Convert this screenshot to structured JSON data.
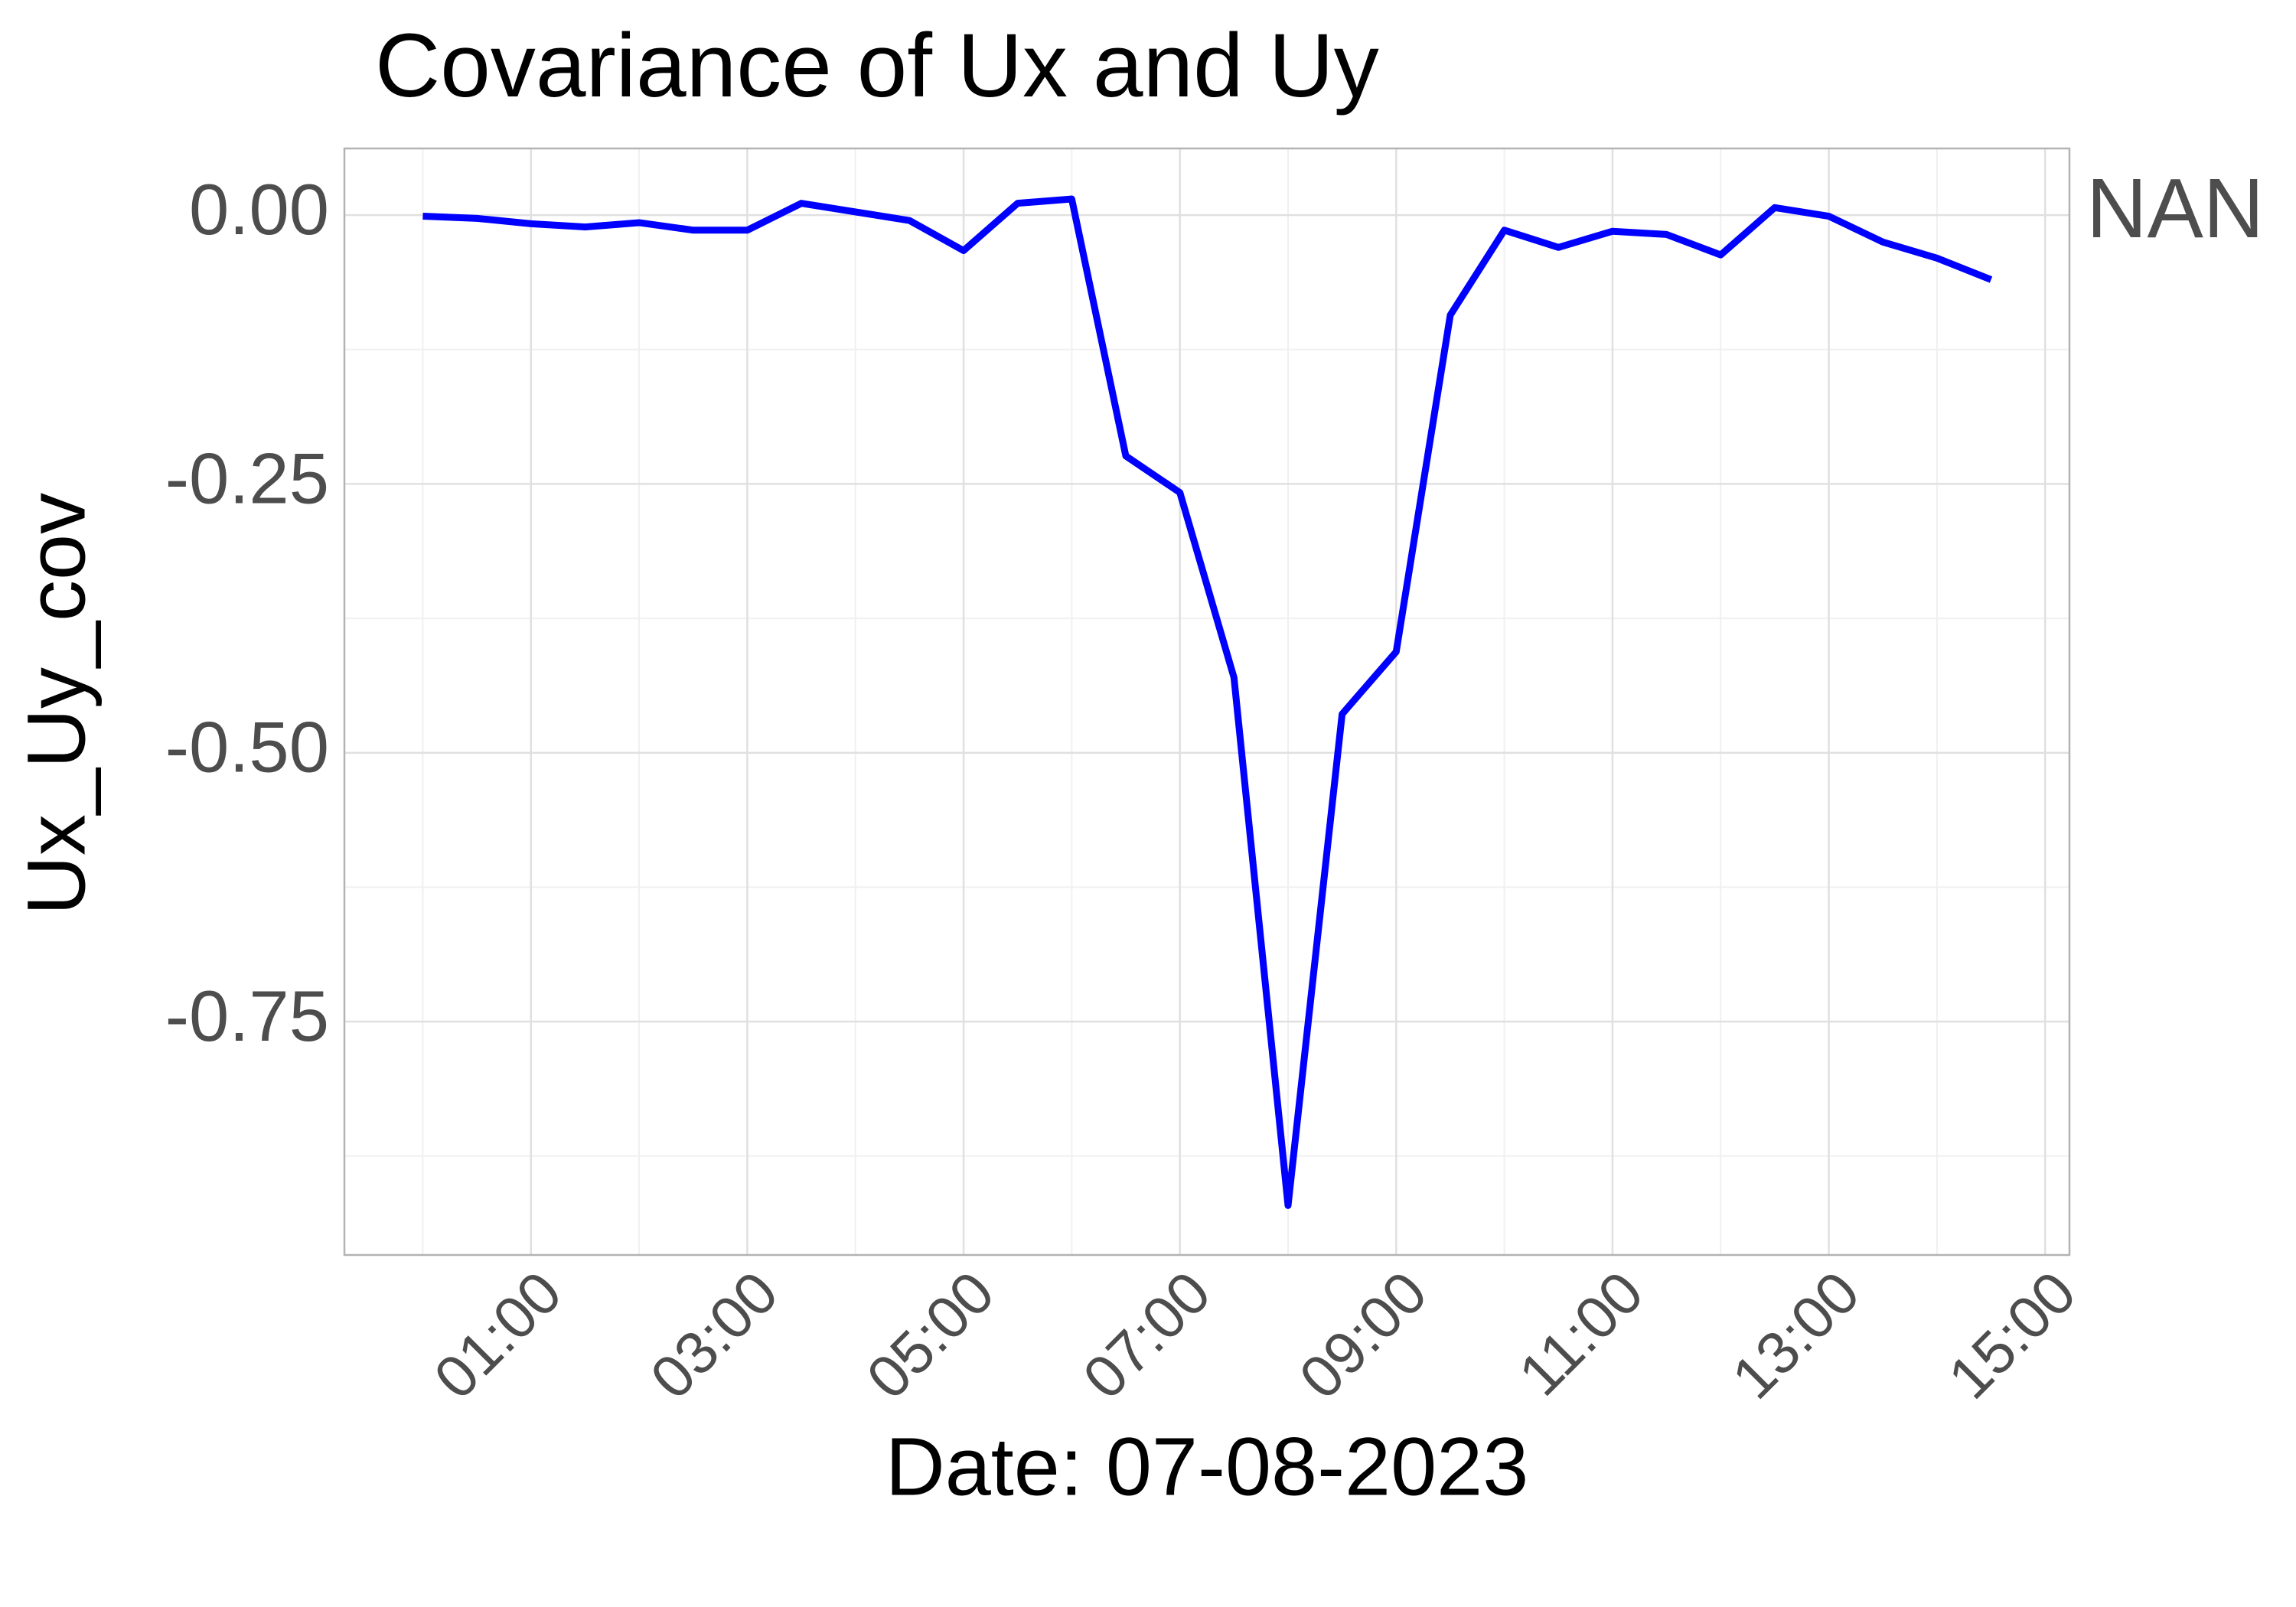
{
  "chart_data": {
    "type": "line",
    "title": "Covariance of Ux and Uy",
    "x_label": "Date: 07-08-2023",
    "y_label": "Ux_Uy_cov",
    "right_label": "NAN",
    "x": [
      0,
      0.5,
      1,
      1.5,
      2,
      2.5,
      3,
      3.5,
      4,
      4.5,
      5,
      5.5,
      6,
      6.5,
      7,
      7.5,
      8,
      8.5,
      9,
      9.5,
      10,
      10.5,
      11,
      11.5,
      12,
      12.5,
      13,
      13.5,
      14,
      14.5
    ],
    "series": [
      {
        "name": "Ux_Uy_cov",
        "color": "#0000ff",
        "values": [
          -0.001,
          -0.003,
          -0.008,
          -0.011,
          -0.007,
          -0.014,
          -0.014,
          0.011,
          0.003,
          -0.005,
          -0.033,
          0.011,
          0.015,
          -0.224,
          -0.258,
          -0.43,
          -0.921,
          -0.464,
          -0.406,
          -0.093,
          -0.014,
          -0.03,
          -0.015,
          -0.018,
          -0.037,
          0.007,
          -0.001,
          -0.025,
          -0.04,
          -0.06
        ]
      }
    ],
    "xlim": [
      -0.725,
      15.225
    ],
    "xticks": [
      {
        "value": 1,
        "label": "01:00"
      },
      {
        "value": 3,
        "label": "03:00"
      },
      {
        "value": 5,
        "label": "05:00"
      },
      {
        "value": 7,
        "label": "07:00"
      },
      {
        "value": 9,
        "label": "09:00"
      },
      {
        "value": 11,
        "label": "11:00"
      },
      {
        "value": 13,
        "label": "13:00"
      },
      {
        "value": 15,
        "label": "15:00"
      }
    ],
    "ylim": [
      -0.967,
      0.062
    ],
    "yticks": [
      {
        "value": 0,
        "label": "0.00"
      },
      {
        "value": -0.25,
        "label": "-0.25"
      },
      {
        "value": -0.5,
        "label": "-0.50"
      },
      {
        "value": -0.75,
        "label": "-0.75"
      }
    ],
    "grid": true
  }
}
